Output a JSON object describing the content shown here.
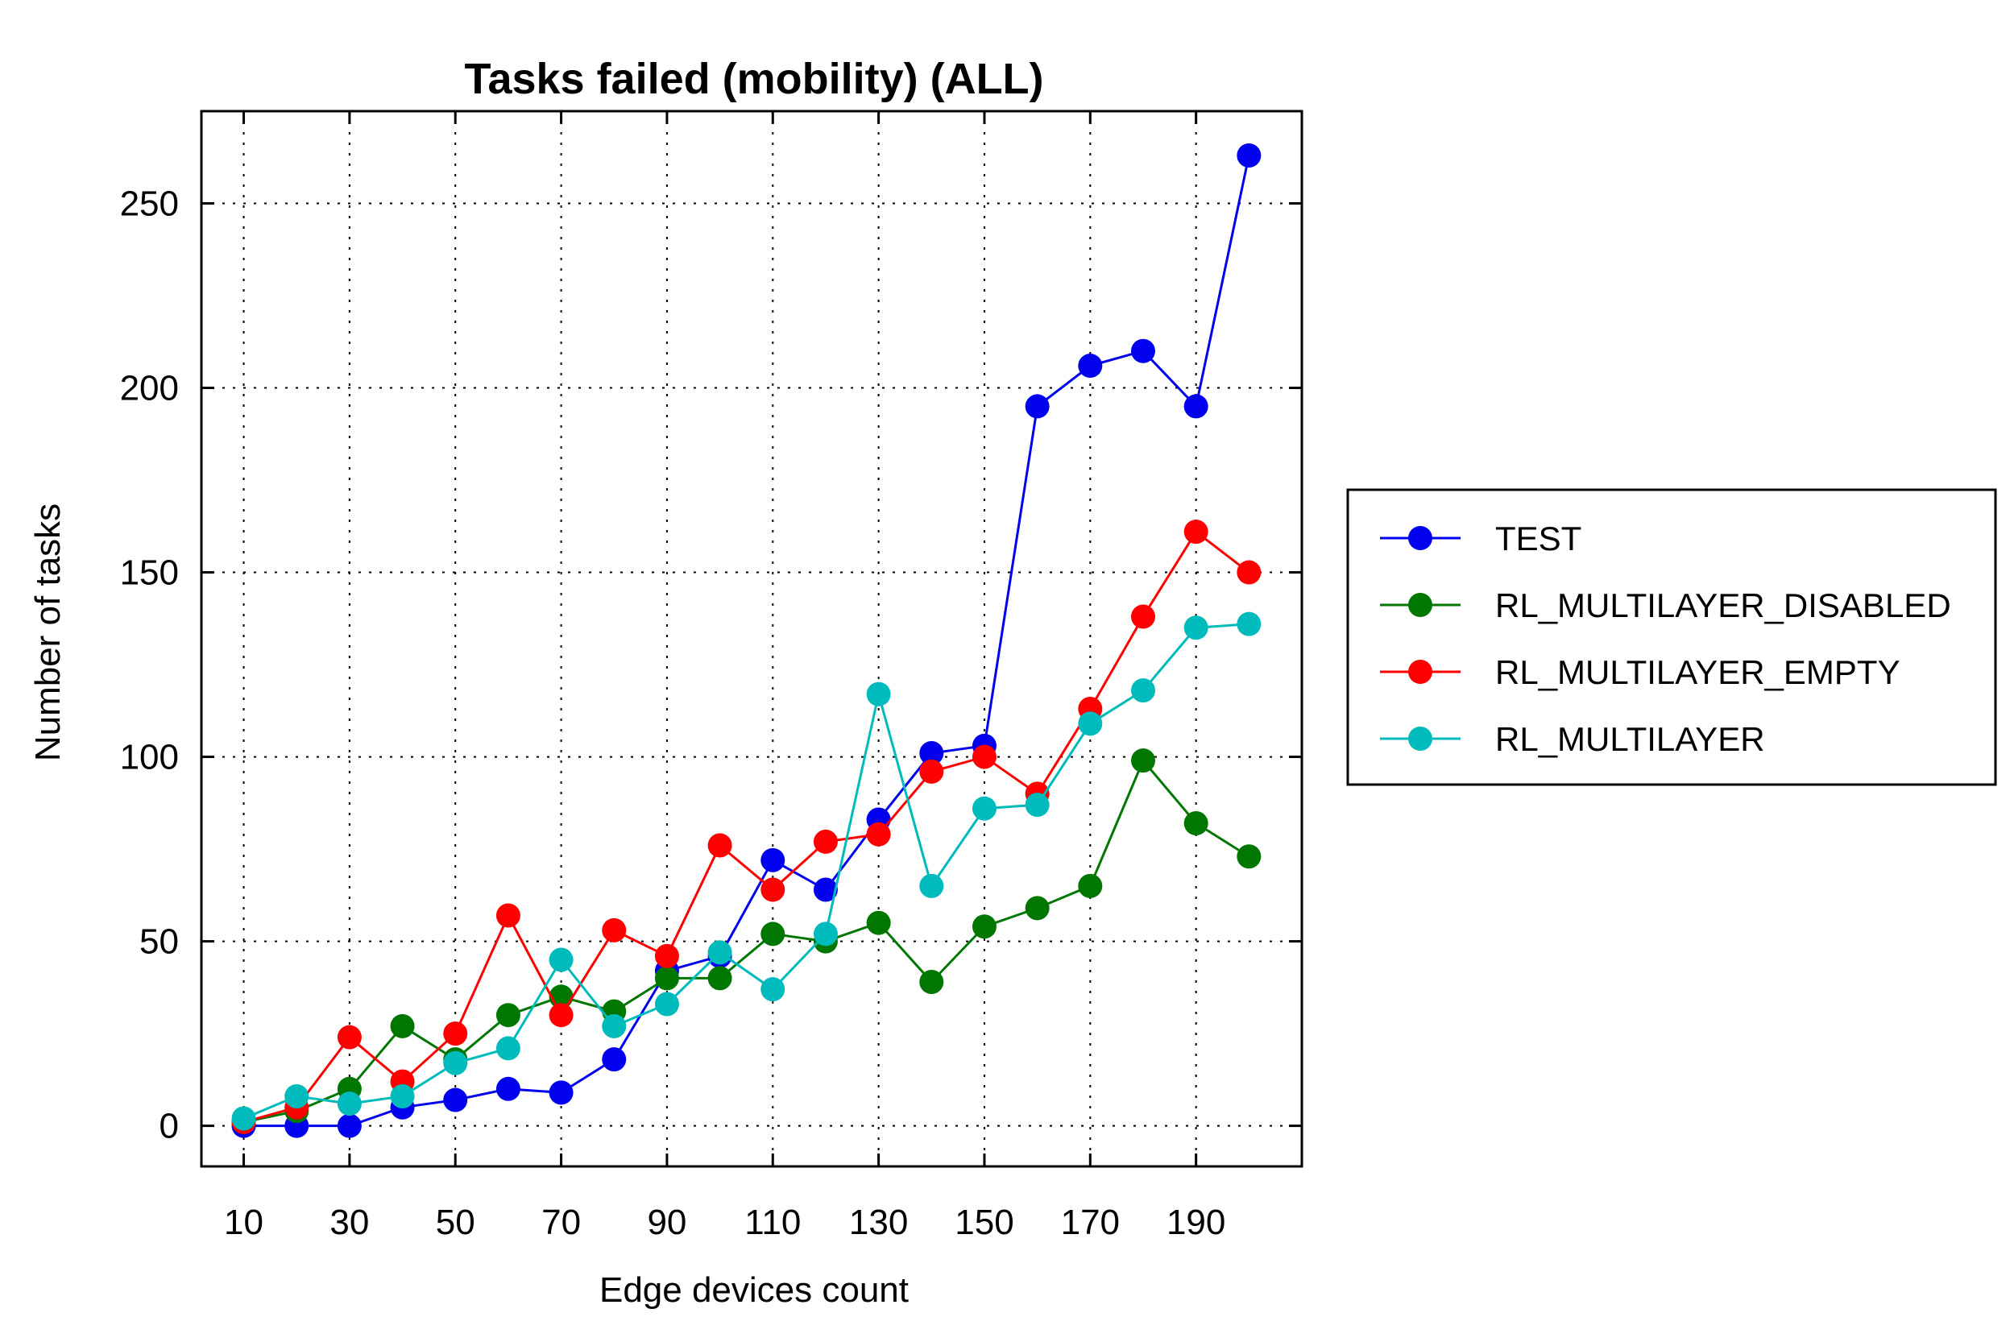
{
  "chart_data": {
    "type": "line",
    "title": "Tasks failed (mobility) (ALL)",
    "xlabel": "Edge devices count",
    "ylabel": "Number of tasks",
    "x": [
      10,
      20,
      30,
      40,
      50,
      60,
      70,
      80,
      90,
      100,
      110,
      120,
      130,
      140,
      150,
      160,
      170,
      180,
      190,
      200
    ],
    "xticks": [
      10,
      30,
      50,
      70,
      90,
      110,
      130,
      150,
      170,
      190
    ],
    "yticks": [
      0,
      50,
      100,
      150,
      200,
      250
    ],
    "xlim": [
      2,
      210
    ],
    "ylim": [
      -11,
      275
    ],
    "grid": true,
    "legend_position": "right",
    "series": [
      {
        "name": "TEST",
        "color": "#0000ee",
        "values": [
          0,
          0,
          0,
          5,
          7,
          10,
          9,
          18,
          42,
          46,
          72,
          64,
          83,
          101,
          103,
          195,
          206,
          210,
          195,
          263
        ]
      },
      {
        "name": "RL_MULTILAYER_DISABLED",
        "color": "#007700",
        "values": [
          1,
          4,
          10,
          27,
          18,
          30,
          35,
          31,
          40,
          40,
          52,
          50,
          55,
          39,
          54,
          59,
          65,
          99,
          82,
          73
        ]
      },
      {
        "name": "RL_MULTILAYER_EMPTY",
        "color": "#ff0000",
        "values": [
          1,
          5,
          24,
          12,
          25,
          57,
          30,
          53,
          46,
          76,
          64,
          77,
          79,
          96,
          100,
          90,
          113,
          138,
          161,
          150
        ]
      },
      {
        "name": "RL_MULTILAYER",
        "color": "#00bbbb",
        "values": [
          2,
          8,
          6,
          8,
          17,
          21,
          45,
          27,
          33,
          47,
          37,
          52,
          117,
          65,
          86,
          87,
          109,
          118,
          135,
          136
        ]
      }
    ]
  }
}
